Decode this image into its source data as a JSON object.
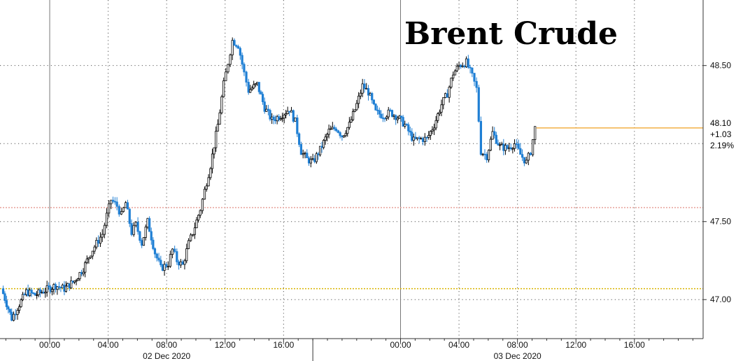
{
  "chart_data": {
    "type": "candlestick",
    "title": "Brent Crude",
    "x_tick_labels": [
      "00:00",
      "04:00",
      "08:00",
      "12:00",
      "16:00",
      "00:00",
      "04:00",
      "08:00",
      "12:00",
      "16:00"
    ],
    "x_tick_hours": [
      0,
      4,
      8,
      12,
      16,
      24,
      28,
      32,
      36,
      40
    ],
    "date_labels": [
      "02 Dec 2020",
      "03 Dec 2020"
    ],
    "date_label_hours": [
      8,
      32
    ],
    "day_boundary_hour": 18,
    "xlim_hours": [
      -3.4,
      44.7
    ],
    "y_tick_labels": [
      "48.50",
      "47.50",
      "47.00"
    ],
    "y_ticks": [
      48.5,
      47.5,
      47.0
    ],
    "y_grid": [
      47.0,
      47.5,
      48.0,
      48.5
    ],
    "ylim": [
      46.75,
      48.92
    ],
    "grid": true,
    "last_value": {
      "price": "48.10",
      "change": "+1.03",
      "pct": "2.19%",
      "value": 48.1
    },
    "reference_lines": [
      {
        "value": 47.07,
        "style": "dotted",
        "color": "#d9b300"
      },
      {
        "value": 47.59,
        "style": "dotted",
        "color": "#e8a7a0"
      },
      {
        "value": 48.1,
        "style": "solid",
        "color": "#f0a020"
      }
    ],
    "colors": {
      "up": "#000000",
      "down": "#1f7fd4",
      "grid": "#555555"
    },
    "series": [
      {
        "values": [
          [
            -3.3,
            47.07
          ],
          [
            -2.6,
            46.88
          ],
          [
            -2.2,
            46.95
          ],
          [
            -1.6,
            47.05
          ],
          [
            -1.0,
            47.03
          ],
          [
            -0.3,
            47.06
          ],
          [
            0.4,
            47.09
          ],
          [
            1.0,
            47.07
          ],
          [
            1.7,
            47.12
          ],
          [
            2.3,
            47.2
          ],
          [
            2.8,
            47.3
          ],
          [
            3.2,
            47.36
          ],
          [
            3.6,
            47.42
          ],
          [
            3.9,
            47.54
          ],
          [
            4.2,
            47.64
          ],
          [
            4.6,
            47.6
          ],
          [
            4.9,
            47.54
          ],
          [
            5.2,
            47.62
          ],
          [
            5.6,
            47.43
          ],
          [
            5.9,
            47.48
          ],
          [
            6.3,
            47.36
          ],
          [
            6.7,
            47.5
          ],
          [
            7.2,
            47.3
          ],
          [
            7.6,
            47.2
          ],
          [
            8.1,
            47.23
          ],
          [
            8.4,
            47.32
          ],
          [
            8.7,
            47.25
          ],
          [
            9.1,
            47.22
          ],
          [
            9.5,
            47.36
          ],
          [
            9.8,
            47.43
          ],
          [
            10.3,
            47.58
          ],
          [
            10.6,
            47.7
          ],
          [
            11.0,
            47.86
          ],
          [
            11.5,
            48.12
          ],
          [
            11.9,
            48.38
          ],
          [
            12.2,
            48.52
          ],
          [
            12.5,
            48.66
          ],
          [
            12.9,
            48.63
          ],
          [
            13.3,
            48.45
          ],
          [
            13.6,
            48.34
          ],
          [
            14.2,
            48.38
          ],
          [
            14.7,
            48.23
          ],
          [
            15.2,
            48.15
          ],
          [
            15.8,
            48.18
          ],
          [
            16.4,
            48.22
          ],
          [
            16.8,
            48.14
          ],
          [
            17.2,
            47.95
          ],
          [
            17.6,
            47.9
          ],
          [
            18.0,
            47.88
          ],
          [
            18.5,
            47.96
          ],
          [
            19.1,
            48.08
          ],
          [
            19.6,
            48.1
          ],
          [
            20.0,
            48.05
          ],
          [
            20.5,
            48.12
          ],
          [
            21.0,
            48.25
          ],
          [
            21.4,
            48.37
          ],
          [
            21.8,
            48.33
          ],
          [
            22.3,
            48.2
          ],
          [
            22.8,
            48.18
          ],
          [
            23.3,
            48.2
          ],
          [
            23.8,
            48.17
          ],
          [
            24.3,
            48.12
          ],
          [
            24.9,
            48.02
          ],
          [
            25.4,
            48.03
          ],
          [
            25.8,
            48.03
          ],
          [
            26.3,
            48.12
          ],
          [
            26.8,
            48.25
          ],
          [
            27.2,
            48.32
          ],
          [
            27.6,
            48.45
          ],
          [
            28.0,
            48.5
          ],
          [
            28.5,
            48.52
          ],
          [
            28.9,
            48.43
          ],
          [
            29.2,
            48.35
          ],
          [
            29.5,
            47.95
          ],
          [
            29.9,
            47.92
          ],
          [
            30.3,
            48.07
          ],
          [
            30.8,
            47.98
          ],
          [
            31.3,
            47.97
          ],
          [
            31.8,
            48.0
          ],
          [
            32.2,
            47.93
          ],
          [
            32.6,
            47.88
          ],
          [
            32.9,
            47.95
          ],
          [
            33.2,
            48.1
          ]
        ]
      }
    ]
  }
}
